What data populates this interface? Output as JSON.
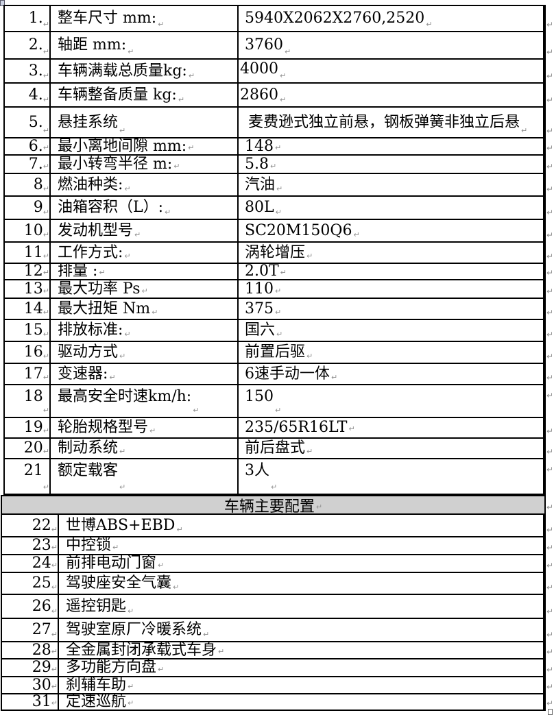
{
  "table": {
    "section1_rows": [
      {
        "no": "1.",
        "label": "整车尺寸 mm:",
        "value": "5940X2062X2760,2520"
      },
      {
        "no": "2.",
        "label": "轴距 mm:",
        "value": "3760"
      },
      {
        "no": "3.",
        "label": "车辆满载总质量kg:",
        "value": "4000"
      },
      {
        "no": "4.",
        "label": "车辆整备质量 kg:",
        "value": "2860"
      },
      {
        "no": "5.",
        "label": "悬挂系统",
        "value": "麦费逊式独立前悬，钢板弹簧非独立后悬"
      },
      {
        "no": "6.",
        "label": "最小离地间隙 mm:",
        "value": "148"
      },
      {
        "no": "7.",
        "label": "最小转弯半径 m:",
        "value": "5.8"
      },
      {
        "no": "8",
        "label": "燃油种类:",
        "value": "汽油"
      },
      {
        "no": "9",
        "label": "油箱容积（L）:",
        "value": "80L"
      },
      {
        "no": "10",
        "label": "发动机型号",
        "value": "SC20M150Q6"
      },
      {
        "no": "11",
        "label": "工作方式:",
        "value": "涡轮增压"
      },
      {
        "no": "12",
        "label": "排量 :",
        "value": "2.0T"
      },
      {
        "no": "13",
        "label": "最大功率 Ps",
        "value": "110"
      },
      {
        "no": "14",
        "label": "最大扭矩 Nm",
        "value": "375"
      },
      {
        "no": "15",
        "label": "排放标准:",
        "value": "国六"
      },
      {
        "no": "16",
        "label": "驱动方式",
        "value": "前置后驱"
      },
      {
        "no": "17",
        "label": "变速器:",
        "value": "6速手动一体"
      },
      {
        "no": "18",
        "label": "最高安全时速km/h:",
        "value": "150"
      },
      {
        "no": "19",
        "label": "轮胎规格型号",
        "value": "235/65R16LT"
      },
      {
        "no": "20",
        "label": "制动系统",
        "value": "前后盘式"
      },
      {
        "no": "21",
        "label": "额定载客",
        "value": "3人"
      }
    ],
    "section2_header": "车辆主要配置",
    "section2_rows": [
      {
        "no": "22",
        "label": "世博ABS+EBD"
      },
      {
        "no": "23",
        "label": "中控锁"
      },
      {
        "no": "24",
        "label": "前排电动门窗"
      },
      {
        "no": "25",
        "label": "驾驶座安全气囊"
      },
      {
        "no": "26",
        "label": "遥控钥匙"
      },
      {
        "no": "27",
        "label": "驾驶室原厂冷暖系统"
      },
      {
        "no": "28",
        "label": "全金属封闭承载式车身"
      },
      {
        "no": "29",
        "label": "多功能方向盘"
      },
      {
        "no": "30",
        "label": "刹辅车助"
      },
      {
        "no": "31",
        "label": "定速巡航"
      }
    ]
  },
  "marks": {
    "cell_mark": "↵"
  },
  "colors": {
    "header_bg": "#d0d0d0",
    "border": "#000000",
    "mark_gray": "#8f8f8f"
  }
}
